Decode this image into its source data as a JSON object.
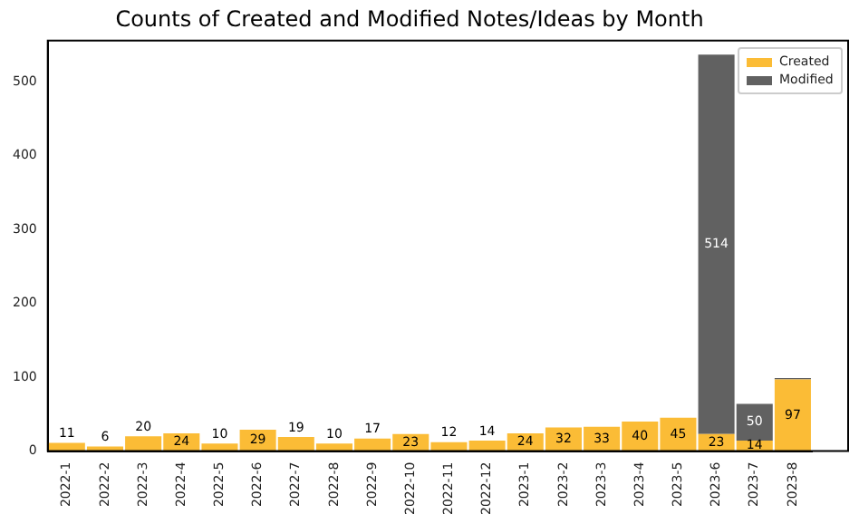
{
  "chart_data": {
    "type": "bar",
    "title": "Counts of Created and Modified Notes/Ideas by Month",
    "categories": [
      "2022-1",
      "2022-2",
      "2022-3",
      "2022-4",
      "2022-5",
      "2022-6",
      "2022-7",
      "2022-8",
      "2022-9",
      "2022-10",
      "2022-11",
      "2022-12",
      "2023-1",
      "2023-2",
      "2023-3",
      "2023-4",
      "2023-5",
      "2023-6",
      "2023-7",
      "2023-8"
    ],
    "stacked": true,
    "series": [
      {
        "name": "Created",
        "color": "#fbbc36",
        "values": [
          11,
          6,
          20,
          24,
          10,
          29,
          19,
          10,
          17,
          23,
          12,
          14,
          24,
          32,
          33,
          40,
          45,
          23,
          14,
          97
        ],
        "value_labels": [
          "11",
          "6",
          "20",
          "24",
          "10",
          "29",
          "19",
          "10",
          "17",
          "23",
          "12",
          "14",
          "24",
          "32",
          "33",
          "40",
          "45",
          "23",
          "14",
          "97"
        ]
      },
      {
        "name": "Modified",
        "color": "#616161",
        "values": [
          null,
          null,
          null,
          null,
          null,
          null,
          null,
          null,
          null,
          null,
          null,
          null,
          null,
          null,
          null,
          null,
          null,
          514,
          50,
          2
        ],
        "value_labels": [
          null,
          null,
          null,
          null,
          null,
          null,
          null,
          null,
          null,
          null,
          null,
          null,
          null,
          null,
          null,
          null,
          null,
          "514",
          "50",
          null
        ]
      }
    ],
    "ylim": [
      0,
      556
    ],
    "yticks": [
      0,
      100,
      200,
      300,
      400,
      500
    ],
    "grid": false,
    "legend": "top right"
  }
}
